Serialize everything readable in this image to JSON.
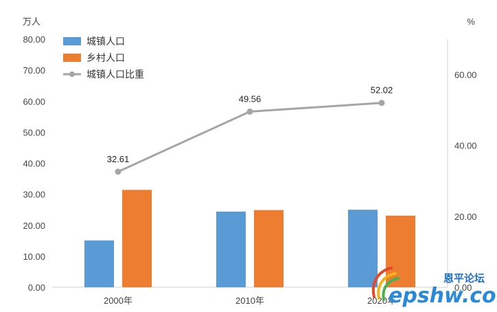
{
  "chart_data": {
    "type": "bar",
    "categories": [
      "2000年",
      "2010年",
      "2020年"
    ],
    "series": [
      {
        "name": "城镇人口",
        "type": "bar",
        "axis": "left",
        "color": "#5b9bd5",
        "values": [
          15.1,
          24.4,
          25.0
        ]
      },
      {
        "name": "乡村人口",
        "type": "bar",
        "axis": "left",
        "color": "#ed7d31",
        "values": [
          31.4,
          24.9,
          23.1
        ]
      },
      {
        "name": "城镇人口比重",
        "type": "line",
        "axis": "right",
        "color": "#a5a5a5",
        "values": [
          32.61,
          49.56,
          52.02
        ],
        "data_labels": [
          "32.61",
          "49.56",
          "52.02"
        ]
      }
    ],
    "left_axis": {
      "unit": "万人",
      "min": 0,
      "max": 80,
      "step": 10,
      "tick_labels": [
        "0.00",
        "10.00",
        "20.00",
        "30.00",
        "40.00",
        "50.00",
        "60.00",
        "70.00",
        "80.00"
      ]
    },
    "right_axis": {
      "unit": "%",
      "min": 0,
      "max": 70,
      "step": 20,
      "tick_labels": [
        "0.00",
        "20.00",
        "40.00",
        "60.00"
      ]
    },
    "legend_position": "top-left",
    "grid": false
  },
  "watermark": {
    "cn": "恩平论坛",
    "en": "epshw.com"
  }
}
